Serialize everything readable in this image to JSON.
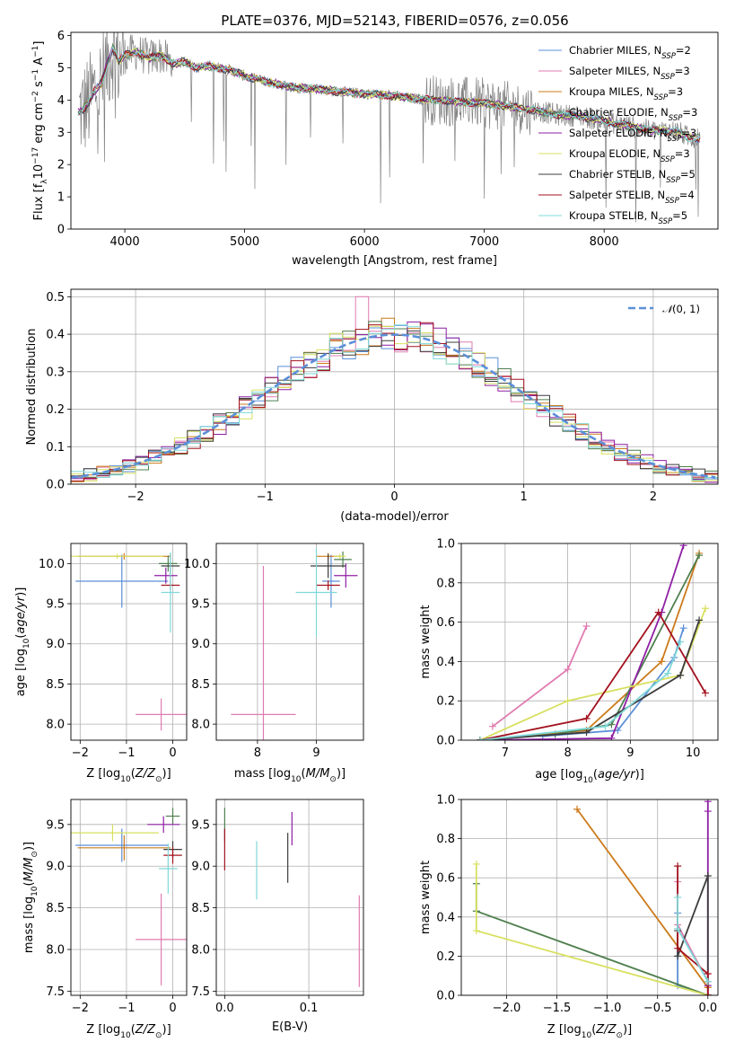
{
  "figure": {
    "title": "PLATE=0376, MJD=52143, FIBERID=0576, z=0.056"
  },
  "colors": {
    "model_colors": [
      "#5b8fd8",
      "#e07bb0",
      "#cc7a1a",
      "#4f7f4f",
      "#8e1fa3",
      "#d8e060",
      "#3c3c3c",
      "#a3121f",
      "#7fd8d8"
    ],
    "data_color": "#808080",
    "grid": "#b0b0b0"
  },
  "chart_data": [
    {
      "id": "spectrum",
      "type": "line",
      "xlabel": "wavelength [Angstrom, rest frame]",
      "ylabel": "Flux [fλ10⁻¹⁷ erg cm⁻² s⁻¹ A⁻¹]",
      "xlim": [
        3550,
        8950
      ],
      "ylim": [
        0,
        6.1
      ],
      "xticks": [
        4000,
        5000,
        6000,
        7000,
        8000
      ],
      "yticks": [
        0,
        1,
        2,
        3,
        4,
        5,
        6
      ],
      "grid": false,
      "legend_position": "upper-right",
      "legend": [
        "Chabrier MILES, N_SSP=2",
        "Salpeter MILES, N_SSP=3",
        "Kroupa MILES, N_SSP=3",
        "Chabrier ELODIE, N_SSP=3",
        "Salpeter ELODIE, N_SSP=3",
        "Kroupa ELODIE, N_SSP=3",
        "Chabrier STELIB, N_SSP=5",
        "Salpeter STELIB, N_SSP=4",
        "Kroupa STELIB, N_SSP=5"
      ],
      "model_continuum": {
        "x": [
          3600,
          3650,
          3700,
          3750,
          3800,
          3850,
          3900,
          3950,
          4000,
          4100,
          4200,
          4300,
          4400,
          4500,
          4600,
          4700,
          4800,
          4900,
          5000,
          5200,
          5400,
          5600,
          5800,
          6000,
          6200,
          6400,
          6600,
          6800,
          7000,
          7200,
          7400,
          7600,
          7800,
          8000,
          8200,
          8400,
          8600,
          8700,
          8900
        ],
        "y": [
          3.6,
          3.7,
          3.9,
          4.3,
          4.5,
          5.1,
          5.6,
          5.2,
          5.4,
          5.5,
          5.3,
          5.4,
          5.1,
          5.2,
          5.0,
          5.05,
          5.0,
          4.9,
          4.75,
          4.55,
          4.4,
          4.35,
          4.25,
          4.2,
          4.15,
          4.05,
          4.0,
          3.95,
          3.9,
          3.8,
          3.7,
          3.55,
          3.5,
          3.35,
          3.2,
          3.05,
          3.05,
          2.85,
          2.75
        ]
      },
      "data_note": "noisy observed spectrum in grey, same continuum, strong noise below 4000 A and above 6500 A"
    },
    {
      "id": "residuals",
      "type": "step",
      "xlabel": "(data-model)/error",
      "ylabel": "Normed distribution",
      "xlim": [
        -2.5,
        2.5
      ],
      "ylim": [
        0,
        0.52
      ],
      "xticks": [
        -2,
        -1,
        0,
        1,
        2
      ],
      "yticks": [
        0,
        0.1,
        0.2,
        0.3,
        0.4,
        0.5
      ],
      "grid": true,
      "legend_position": "upper-right",
      "legend": [
        "𝒩(0,1)"
      ],
      "gaussian": {
        "mu": 0,
        "sigma": 1
      },
      "bin_width": 0.1,
      "hist_note": "nine model histograms scattering around N(0,1); Salpeter MILES peaks at 0.5 near -0.25"
    },
    {
      "id": "age-vs-Z",
      "type": "errorbar",
      "xlabel": "Z [log10(Z/Z⊙)]",
      "ylabel": "age  [log10(age/yr)]",
      "xlim": [
        -2.2,
        0.3
      ],
      "ylim": [
        7.8,
        10.25
      ],
      "xticks": [
        -2,
        -1,
        0
      ],
      "yticks": [
        8.0,
        8.5,
        9.0,
        9.5,
        10.0
      ],
      "points": [
        {
          "model": 0,
          "x": -1.1,
          "y": 9.78,
          "xerr": 1.0,
          "yerr": 0.33
        },
        {
          "model": 1,
          "x": -0.25,
          "y": 8.12,
          "xerr": 0.55,
          "yerr": 0.2
        },
        {
          "model": 2,
          "x": -1.05,
          "y": 10.09,
          "xerr": 1.0,
          "yerr": 0.04
        },
        {
          "model": 3,
          "x": -0.1,
          "y": 10.0,
          "xerr": 0.2,
          "yerr": 0.1
        },
        {
          "model": 4,
          "x": -0.15,
          "y": 9.85,
          "xerr": 0.25,
          "yerr": 0.1
        },
        {
          "model": 5,
          "x": -1.2,
          "y": 10.09,
          "xerr": 1.0,
          "yerr": 0.03
        },
        {
          "model": 6,
          "x": -0.05,
          "y": 9.97,
          "xerr": 0.2,
          "yerr": 0.15
        },
        {
          "model": 7,
          "x": -0.05,
          "y": 9.73,
          "xerr": 0.2,
          "yerr": 0.06
        },
        {
          "model": 8,
          "x": -0.05,
          "y": 9.64,
          "xerr": 0.2,
          "yerr": 0.5
        }
      ]
    },
    {
      "id": "age-vs-mass",
      "type": "errorbar",
      "xlabel": "mass [log10(M/M⊙)]",
      "ylabel": "",
      "xlim": [
        7.3,
        9.8
      ],
      "ylim": [
        7.8,
        10.25
      ],
      "xticks": [
        8,
        9
      ],
      "yticks": [
        8.0,
        8.5,
        9.0,
        9.5,
        10.0
      ],
      "points": [
        {
          "model": 0,
          "x": 9.25,
          "y": 9.78,
          "xerr": 0.15,
          "yerr": 0.33
        },
        {
          "model": 1,
          "x": 8.1,
          "y": 8.12,
          "xerr": 0.55,
          "yerr": 1.85
        },
        {
          "model": 2,
          "x": 9.2,
          "y": 10.09,
          "xerr": 0.2,
          "yerr": 0.04
        },
        {
          "model": 3,
          "x": 9.45,
          "y": 10.05,
          "xerr": 0.15,
          "yerr": 0.1
        },
        {
          "model": 4,
          "x": 9.5,
          "y": 9.85,
          "xerr": 0.2,
          "yerr": 0.15
        },
        {
          "model": 5,
          "x": 9.4,
          "y": 10.09,
          "xerr": 0.1,
          "yerr": 0.03
        },
        {
          "model": 6,
          "x": 9.2,
          "y": 9.97,
          "xerr": 0.3,
          "yerr": 0.15
        },
        {
          "model": 7,
          "x": 9.2,
          "y": 9.73,
          "xerr": 0.2,
          "yerr": 0.06
        },
        {
          "model": 8,
          "x": 9.0,
          "y": 9.64,
          "xerr": 0.35,
          "yerr": 0.55
        }
      ]
    },
    {
      "id": "mass-weight-vs-age",
      "type": "line",
      "xlabel": "age  [log10(age/yr)]",
      "ylabel": "mass weight",
      "xlim": [
        6.3,
        10.4
      ],
      "ylim": [
        0,
        1.0
      ],
      "xticks": [
        7,
        8,
        9,
        10
      ],
      "yticks": [
        0.0,
        0.2,
        0.4,
        0.6,
        0.8,
        1.0
      ],
      "series": [
        {
          "model": 0,
          "x": [
            7.6,
            8.8,
            9.7,
            9.85
          ],
          "y": [
            0.02,
            0.05,
            0.42,
            0.57
          ]
        },
        {
          "model": 1,
          "x": [
            6.8,
            8.0,
            8.3
          ],
          "y": [
            0.07,
            0.36,
            0.58
          ]
        },
        {
          "model": 2,
          "x": [
            6.6,
            8.3,
            9.5,
            10.1
          ],
          "y": [
            0.0,
            0.05,
            0.4,
            0.95
          ]
        },
        {
          "model": 3,
          "x": [
            6.6,
            7.8,
            8.7,
            10.1
          ],
          "y": [
            0.0,
            0.03,
            0.08,
            0.94
          ]
        },
        {
          "model": 4,
          "x": [
            6.6,
            8.7,
            9.5,
            9.85
          ],
          "y": [
            0.0,
            0.01,
            0.65,
            0.99
          ]
        },
        {
          "model": 5,
          "x": [
            6.6,
            8.0,
            9.8,
            10.2
          ],
          "y": [
            0.0,
            0.2,
            0.33,
            0.67
          ]
        },
        {
          "model": 6,
          "x": [
            6.6,
            8.3,
            9.8,
            10.1
          ],
          "y": [
            0.0,
            0.04,
            0.33,
            0.61
          ]
        },
        {
          "model": 7,
          "x": [
            6.6,
            8.3,
            9.45,
            10.2
          ],
          "y": [
            0.0,
            0.11,
            0.65,
            0.24
          ]
        },
        {
          "model": 8,
          "x": [
            6.6,
            8.6,
            9.6,
            9.8
          ],
          "y": [
            0.0,
            0.07,
            0.34,
            0.5
          ]
        }
      ]
    },
    {
      "id": "mass-vs-Z",
      "type": "errorbar",
      "xlabel": "Z [log10(Z/Z⊙)]",
      "ylabel": "mass [log10(M/M⊙)]",
      "xlim": [
        -2.2,
        0.3
      ],
      "ylim": [
        7.45,
        9.8
      ],
      "xticks": [
        -2,
        -1,
        0
      ],
      "yticks": [
        7.5,
        8.0,
        8.5,
        9.0,
        9.5
      ],
      "points": [
        {
          "model": 0,
          "x": -1.1,
          "y": 9.25,
          "xerr": 1.0,
          "yerr": 0.2
        },
        {
          "model": 1,
          "x": -0.25,
          "y": 8.12,
          "xerr": 0.55,
          "yerr": 0.55
        },
        {
          "model": 2,
          "x": -1.05,
          "y": 9.22,
          "xerr": 1.0,
          "yerr": 0.15
        },
        {
          "model": 3,
          "x": 0.0,
          "y": 9.6,
          "xerr": 0.15,
          "yerr": 0.1
        },
        {
          "model": 4,
          "x": -0.2,
          "y": 9.5,
          "xerr": 0.35,
          "yerr": 0.1
        },
        {
          "model": 5,
          "x": -1.3,
          "y": 9.4,
          "xerr": 1.0,
          "yerr": 0.1
        },
        {
          "model": 6,
          "x": 0.0,
          "y": 9.2,
          "xerr": 0.2,
          "yerr": 0.1
        },
        {
          "model": 7,
          "x": 0.0,
          "y": 9.13,
          "xerr": 0.2,
          "yerr": 0.1
        },
        {
          "model": 8,
          "x": -0.1,
          "y": 8.97,
          "xerr": 0.2,
          "yerr": 0.3
        }
      ]
    },
    {
      "id": "mass-vs-EBV",
      "type": "errorbar",
      "xlabel": "E(B-V)",
      "ylabel": "",
      "xlim": [
        -0.01,
        0.165
      ],
      "ylim": [
        7.45,
        9.8
      ],
      "xticks": [
        0.0,
        0.1
      ],
      "xticklabels": [
        "0.0",
        "0.1"
      ],
      "yticks": [
        7.5,
        8.0,
        8.5,
        9.0,
        9.5
      ],
      "points": [
        {
          "model": 1,
          "x": 0.16,
          "y": 8.1,
          "xerr": 0,
          "yerr": 0.55
        },
        {
          "model": 3,
          "x": 0.0,
          "y": 9.5,
          "xerr": 0,
          "yerr": 0.2
        },
        {
          "model": 4,
          "x": 0.08,
          "y": 9.45,
          "xerr": 0,
          "yerr": 0.2
        },
        {
          "model": 6,
          "x": 0.075,
          "y": 9.1,
          "xerr": 0,
          "yerr": 0.3
        },
        {
          "model": 7,
          "x": 0.0,
          "y": 9.2,
          "xerr": 0,
          "yerr": 0.25
        },
        {
          "model": 8,
          "x": 0.038,
          "y": 8.95,
          "xerr": 0,
          "yerr": 0.35
        }
      ]
    },
    {
      "id": "mass-weight-vs-Z",
      "type": "line",
      "xlabel": "Z [log10(Z/Z⊙)]",
      "ylabel": "mass weight",
      "xlim": [
        -2.45,
        0.1
      ],
      "ylim": [
        0,
        1.0
      ],
      "xticks": [
        -2.0,
        -1.5,
        -1.0,
        -0.5,
        0.0
      ],
      "xticklabels": [
        "−2.0",
        "−1.5",
        "−1.0",
        "−0.5",
        "0.0"
      ],
      "yticks": [
        0.0,
        0.2,
        0.4,
        0.6,
        0.8,
        1.0
      ],
      "series": [
        {
          "model": 0,
          "x": [
            -0.3,
            -0.3,
            0.0
          ],
          "y": [
            0.42,
            0.05,
            0.0
          ]
        },
        {
          "model": 1,
          "x": [
            -0.3,
            -0.3,
            0.0
          ],
          "y": [
            0.58,
            0.36,
            0.07
          ]
        },
        {
          "model": 2,
          "x": [
            -1.3,
            0.0,
            0.0
          ],
          "y": [
            0.95,
            0.04,
            0.0
          ]
        },
        {
          "model": 3,
          "x": [
            -2.3,
            -2.3,
            0.0
          ],
          "y": [
            0.57,
            0.43,
            0.0
          ]
        },
        {
          "model": 4,
          "x": [
            0.0,
            0.0,
            0.0
          ],
          "y": [
            0.99,
            0.94,
            0.05
          ]
        },
        {
          "model": 5,
          "x": [
            -2.3,
            -2.3,
            0.0
          ],
          "y": [
            0.67,
            0.33,
            0.0
          ]
        },
        {
          "model": 6,
          "x": [
            -0.3,
            -0.3,
            0.0,
            0.0
          ],
          "y": [
            0.33,
            0.2,
            0.61,
            0.0
          ]
        },
        {
          "model": 7,
          "x": [
            -0.3,
            -0.3,
            0.0,
            0.0
          ],
          "y": [
            0.66,
            0.24,
            0.11,
            0.0
          ]
        },
        {
          "model": 8,
          "x": [
            -0.3,
            -0.3,
            0.0
          ],
          "y": [
            0.5,
            0.34,
            0.07
          ]
        }
      ]
    }
  ]
}
